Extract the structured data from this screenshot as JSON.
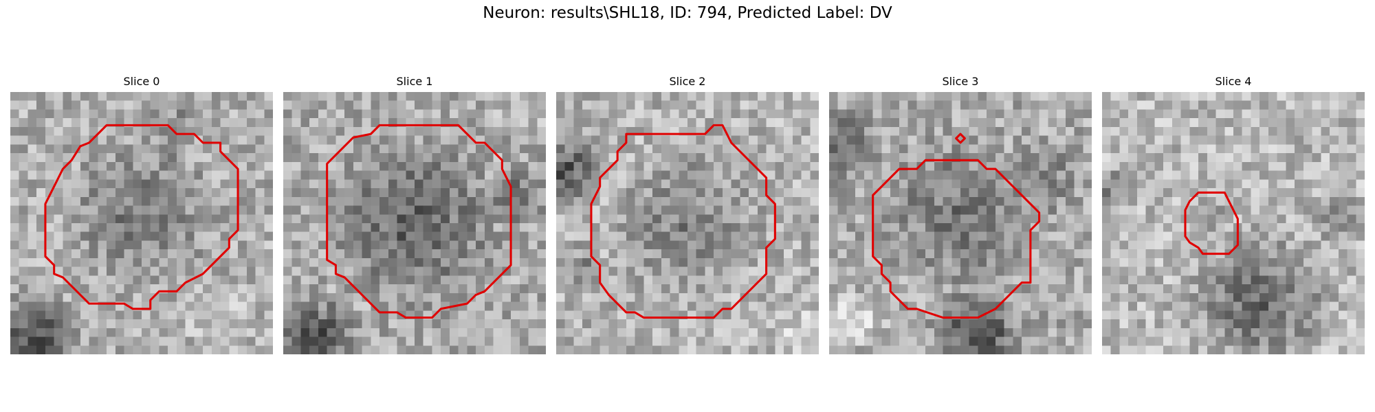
{
  "figure": {
    "title": "Neuron: results\\SHL18, ID: 794, Predicted Label: DV"
  },
  "panels": [
    {
      "title": "Slice 0",
      "image": "grayscale-microscopy-patch",
      "contour_color": "#e00000"
    },
    {
      "title": "Slice 1",
      "image": "grayscale-microscopy-patch",
      "contour_color": "#e00000"
    },
    {
      "title": "Slice 2",
      "image": "grayscale-microscopy-patch",
      "contour_color": "#e00000"
    },
    {
      "title": "Slice 3",
      "image": "grayscale-microscopy-patch",
      "contour_color": "#e00000"
    },
    {
      "title": "Slice 4",
      "image": "grayscale-microscopy-patch",
      "contour_color": "#e00000"
    }
  ]
}
